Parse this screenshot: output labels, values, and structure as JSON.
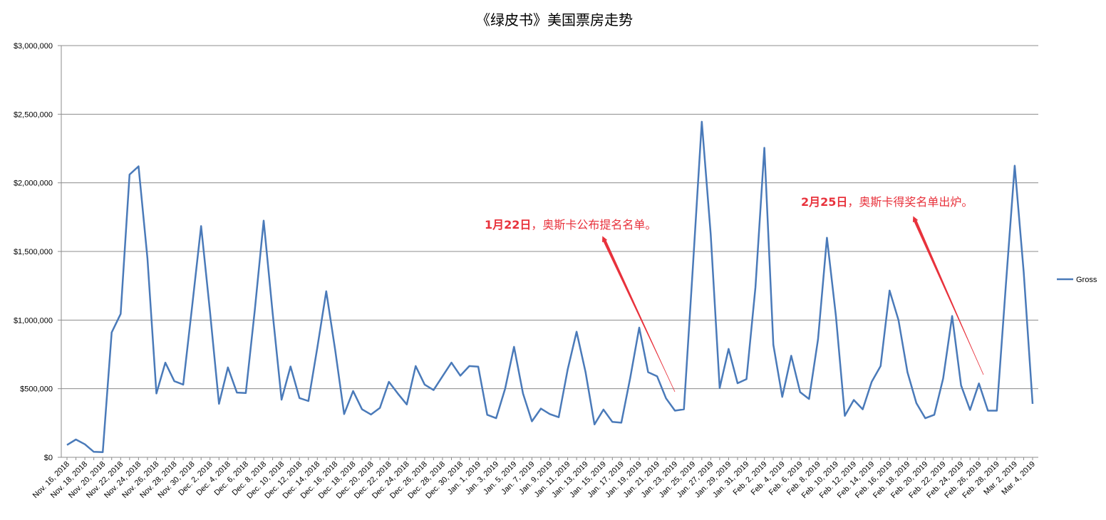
{
  "chart_data": {
    "type": "line",
    "title": "《绿皮书》美国票房走势",
    "ylim": [
      0,
      3000000
    ],
    "yticks": [
      0,
      500000,
      1000000,
      1500000,
      2000000,
      2500000,
      3000000
    ],
    "ytick_labels": [
      "$0",
      "$500,000",
      "$1,000,000",
      "$1,500,000",
      "$2,000,000",
      "$2,500,000",
      "$3,000,000"
    ],
    "grid": true,
    "legend": "right",
    "line_color": "#4a7ab9",
    "annotation_color": "#e8323c",
    "x_labels": [
      "Nov. 16, 2018",
      "Nov. 18, 2018",
      "Nov. 20, 2018",
      "Nov. 22, 2018",
      "Nov. 24, 2018",
      "Nov. 26, 2018",
      "Nov. 28, 2018",
      "Nov. 30, 2018",
      "Dec. 2, 2018",
      "Dec. 4, 2018",
      "Dec. 6, 2018",
      "Dec. 8, 2018",
      "Dec. 10, 2018",
      "Dec. 12, 2018",
      "Dec. 14, 2018",
      "Dec. 16, 2018",
      "Dec. 18, 2018",
      "Dec. 20, 2018",
      "Dec. 22, 2018",
      "Dec. 24, 2018",
      "Dec. 26, 2018",
      "Dec. 28, 2018",
      "Dec. 30, 2018",
      "Jan. 1, 2019",
      "Jan. 3, 2019",
      "Jan. 5, 2019",
      "Jan. 7, 2019",
      "Jan. 9, 2019",
      "Jan. 11, 2019",
      "Jan. 13, 2019",
      "Jan. 15, 2019",
      "Jan. 17, 2019",
      "Jan. 19, 2019",
      "Jan. 21, 2019",
      "Jan. 23, 2019",
      "Jan. 25, 2019",
      "Jan. 27, 2019",
      "Jan. 29, 2019",
      "Jan. 31, 2019",
      "Feb. 2, 2019",
      "Feb. 4, 2019",
      "Feb. 6, 2019",
      "Feb. 8, 2019",
      "Feb. 10, 2019",
      "Feb. 12, 2019",
      "Feb. 14, 2019",
      "Feb. 16, 2019",
      "Feb. 18, 2019",
      "Feb. 20, 2019",
      "Feb. 22, 2019",
      "Feb. 24, 2019",
      "Feb. 26, 2019",
      "Feb. 28, 2019",
      "Mar. 2, 2019",
      "Mar. 4, 2019"
    ],
    "series": [
      {
        "name": "Gross",
        "values": [
          90000,
          130000,
          95000,
          40000,
          38000,
          910000,
          1045000,
          2060000,
          2120000,
          1450000,
          465000,
          690000,
          555000,
          530000,
          1100000,
          1685000,
          1060000,
          390000,
          655000,
          472000,
          468000,
          1070000,
          1725000,
          1050000,
          420000,
          662000,
          432000,
          410000,
          800000,
          1210000,
          780000,
          315000,
          483000,
          350000,
          312000,
          360000,
          550000,
          465000,
          385000,
          665000,
          530000,
          490000,
          590000,
          690000,
          595000,
          665000,
          660000,
          310000,
          285000,
          500000,
          805000,
          465000,
          262000,
          355000,
          315000,
          292000,
          640000,
          915000,
          620000,
          240000,
          348000,
          258000,
          252000,
          580000,
          945000,
          620000,
          590000,
          430000,
          340000,
          350000,
          1380000,
          2445000,
          1625000,
          505000,
          790000,
          540000,
          570000,
          1240000,
          2255000,
          820000,
          440000,
          740000,
          475000,
          425000,
          860000,
          1600000,
          1030000,
          302000,
          418000,
          350000,
          550000,
          665000,
          1215000,
          1000000,
          620000,
          395000,
          285000,
          310000,
          575000,
          1030000,
          525000,
          345000,
          538000,
          340000,
          340000,
          1250000,
          2125000,
          1350000,
          390000
        ]
      }
    ],
    "annotations": [
      {
        "text": "1月22日，奥斯卡公布提名名单。",
        "bold_part": "1月22日"
      },
      {
        "text": "2月25日，奥斯卡得奖名单出炉。",
        "bold_part": "2月25日"
      }
    ]
  }
}
